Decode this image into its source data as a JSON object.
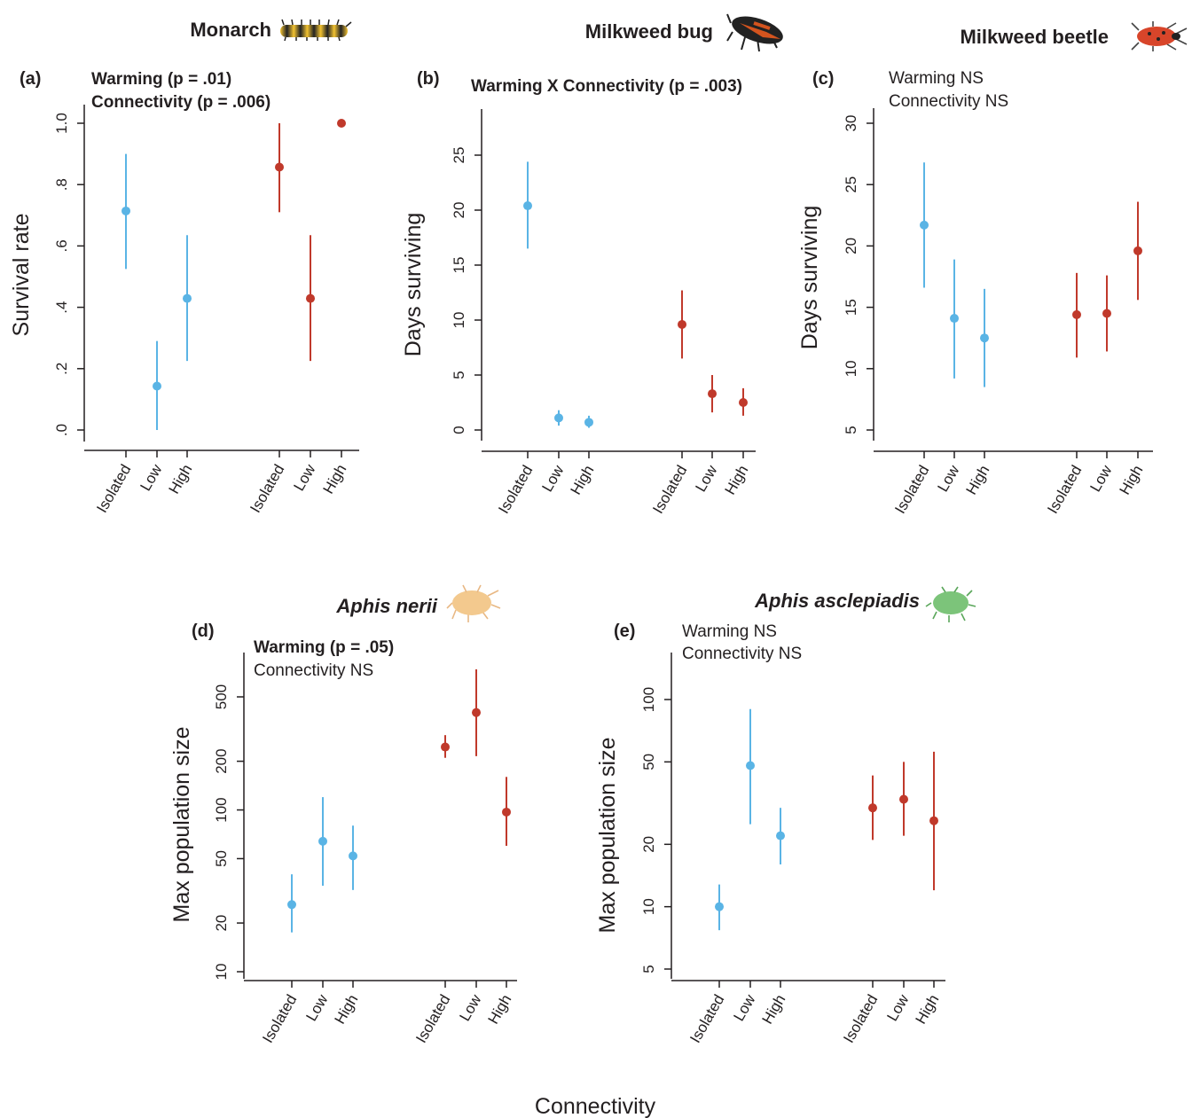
{
  "figure": {
    "x_axis_label": "Connectivity",
    "colors": {
      "ambient": "#5ab4e5",
      "warmed": "#c0392b",
      "text": "#231f20"
    }
  },
  "chart_data": [
    {
      "id": "a",
      "type": "scatter",
      "panel_label": "(a)",
      "title": "Monarch",
      "title_italic": false,
      "icon": "monarch-caterpillar-icon",
      "stats": [
        {
          "text": "Warming (p = .01)",
          "bold": true
        },
        {
          "text": "Connectivity (p = .006)",
          "bold": true
        }
      ],
      "ylabel": "Survival rate",
      "scale": "linear",
      "ylim": [
        0,
        1.05
      ],
      "yticks": [
        0,
        0.2,
        0.4,
        0.6,
        0.8,
        1.0
      ],
      "ytick_labels": [
        ".0",
        ".2",
        ".4",
        ".6",
        ".8",
        "1.0"
      ],
      "categories": [
        "Isolated",
        "Low",
        "High",
        "Isolated",
        "Low",
        "High"
      ],
      "series": [
        {
          "color": "#5ab4e5",
          "values": [
            0.714,
            0.143,
            0.429
          ],
          "lower": [
            0.525,
            0.0,
            0.225
          ],
          "upper": [
            0.9,
            0.29,
            0.635
          ]
        },
        {
          "color": "#c0392b",
          "values": [
            0.857,
            0.429,
            1.0
          ],
          "lower": [
            0.71,
            0.225,
            1.0
          ],
          "upper": [
            1.0,
            0.635,
            1.0
          ]
        }
      ]
    },
    {
      "id": "b",
      "type": "scatter",
      "panel_label": "(b)",
      "title": "Milkweed bug",
      "title_italic": false,
      "icon": "milkweed-bug-icon",
      "stats": [
        {
          "text": "Warming X Connectivity (p = .003)",
          "bold": true
        }
      ],
      "ylabel": "Days surviving",
      "scale": "linear",
      "ylim": [
        0,
        25
      ],
      "yticks": [
        0,
        5,
        10,
        15,
        20,
        25
      ],
      "ytick_labels": [
        "0",
        "5",
        "10",
        "15",
        "20",
        "25"
      ],
      "categories": [
        "Isolated",
        "Low",
        "High",
        "Isolated",
        "Low",
        "High"
      ],
      "series": [
        {
          "color": "#5ab4e5",
          "values": [
            20.4,
            1.1,
            0.7
          ],
          "lower": [
            16.5,
            0.4,
            0.2
          ],
          "upper": [
            24.4,
            1.8,
            1.3
          ]
        },
        {
          "color": "#c0392b",
          "values": [
            9.6,
            3.3,
            2.5
          ],
          "lower": [
            6.5,
            1.6,
            1.3
          ],
          "upper": [
            12.7,
            5.0,
            3.8
          ]
        }
      ]
    },
    {
      "id": "c",
      "type": "scatter",
      "panel_label": "(c)",
      "title": "Milkweed beetle",
      "title_italic": false,
      "icon": "milkweed-beetle-icon",
      "stats": [
        {
          "text": "Warming NS",
          "bold": false
        },
        {
          "text": "Connectivity NS",
          "bold": false
        }
      ],
      "ylabel": "Days surviving",
      "scale": "linear",
      "ylim": [
        5,
        30
      ],
      "yticks": [
        5,
        10,
        15,
        20,
        25,
        30
      ],
      "ytick_labels": [
        "5",
        "10",
        "15",
        "20",
        "25",
        "30"
      ],
      "categories": [
        "Isolated",
        "Low",
        "High",
        "Isolated",
        "Low",
        "High"
      ],
      "series": [
        {
          "color": "#5ab4e5",
          "values": [
            21.7,
            14.1,
            12.5
          ],
          "lower": [
            16.6,
            9.2,
            8.5
          ],
          "upper": [
            26.8,
            18.9,
            16.5
          ]
        },
        {
          "color": "#c0392b",
          "values": [
            14.4,
            14.5,
            19.6
          ],
          "lower": [
            10.9,
            11.4,
            15.6
          ],
          "upper": [
            17.8,
            17.6,
            23.6
          ]
        }
      ]
    },
    {
      "id": "d",
      "type": "scatter",
      "panel_label": "(d)",
      "title": "Aphis nerii",
      "title_italic": true,
      "icon": "aphis-nerii-icon",
      "stats": [
        {
          "text": "Warming (p = .05)",
          "bold": true
        },
        {
          "text": "Connectivity NS",
          "bold": false
        }
      ],
      "ylabel": "Max population size",
      "scale": "log",
      "ylim": [
        8.5,
        1000
      ],
      "yticks": [
        10,
        20,
        50,
        100,
        200,
        500
      ],
      "ytick_labels": [
        "10",
        "20",
        "50",
        "100",
        "200",
        "500"
      ],
      "categories": [
        "Isolated",
        "Low",
        "High",
        "Isolated",
        "Low",
        "High"
      ],
      "series": [
        {
          "color": "#5ab4e5",
          "values": [
            26,
            64,
            52
          ],
          "lower": [
            17.5,
            34,
            32
          ],
          "upper": [
            40,
            120,
            80
          ]
        },
        {
          "color": "#c0392b",
          "values": [
            245,
            400,
            97
          ],
          "lower": [
            210,
            215,
            60
          ],
          "upper": [
            290,
            740,
            160
          ]
        }
      ]
    },
    {
      "id": "e",
      "type": "scatter",
      "panel_label": "(e)",
      "title": "Aphis asclepiadis",
      "title_italic": true,
      "icon": "aphis-asclepiadis-icon",
      "stats": [
        {
          "text": "Warming NS",
          "bold": false
        },
        {
          "text": "Connectivity NS",
          "bold": false
        }
      ],
      "ylabel": "Max population size",
      "scale": "log",
      "ylim": [
        4.2,
        160
      ],
      "yticks": [
        5,
        10,
        20,
        50,
        100
      ],
      "ytick_labels": [
        "5",
        "10",
        "20",
        "50",
        "100"
      ],
      "categories": [
        "Isolated",
        "Low",
        "High",
        "Isolated",
        "Low",
        "High"
      ],
      "series": [
        {
          "color": "#5ab4e5",
          "values": [
            10,
            48,
            22
          ],
          "lower": [
            7.7,
            25,
            16
          ],
          "upper": [
            12.8,
            90,
            30
          ]
        },
        {
          "color": "#c0392b",
          "values": [
            30,
            33,
            26
          ],
          "lower": [
            21,
            22,
            12
          ],
          "upper": [
            43,
            50,
            56
          ]
        }
      ]
    }
  ]
}
